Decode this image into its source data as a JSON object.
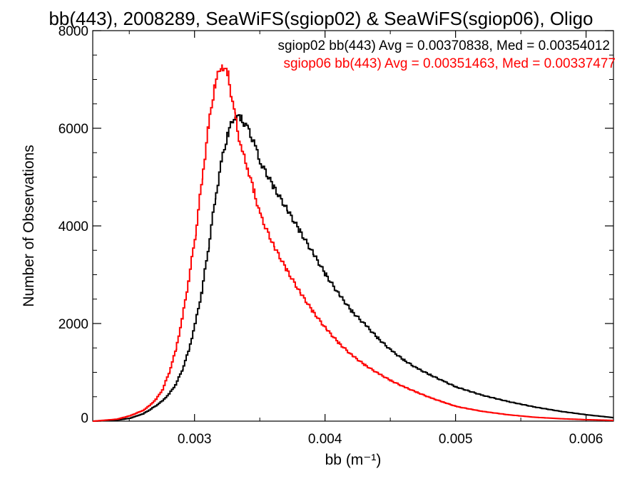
{
  "chart_data": {
    "type": "line",
    "title": "bb(443), 2008289, SeaWiFS(sgiop02) & SeaWiFS(sgiop06), Oligo",
    "xlabel": "bb (m⁻¹)",
    "ylabel": "Number of Observations",
    "xlim": [
      0.00222,
      0.00621
    ],
    "ylim": [
      0,
      8000
    ],
    "x_ticks": [
      0.003,
      0.004,
      0.005,
      0.006
    ],
    "x_tick_labels": [
      "0.003",
      "0.004",
      "0.005",
      "0.006"
    ],
    "y_ticks": [
      0,
      2000,
      4000,
      6000,
      8000
    ],
    "y_tick_labels": [
      "0",
      "2000",
      "4000",
      "6000",
      "8000"
    ],
    "grid": false,
    "annotations": [
      "sgiop02 bb(443) Avg = 0.00370838, Med = 0.00354012",
      "sgiop06 bb(443) Avg = 0.00351463, Med = 0.00337477"
    ],
    "series": [
      {
        "color": "#000000",
        "x": [
          0.00222,
          0.0024,
          0.0025,
          0.0026,
          0.00265,
          0.0027,
          0.00275,
          0.0028,
          0.00285,
          0.0029,
          0.00295,
          0.003,
          0.00305,
          0.0031,
          0.00315,
          0.0032,
          0.00325,
          0.0033,
          0.00335,
          0.0034,
          0.00345,
          0.0035,
          0.0036,
          0.0037,
          0.0038,
          0.0039,
          0.004,
          0.0041,
          0.0042,
          0.0043,
          0.0044,
          0.0045,
          0.0046,
          0.0047,
          0.0048,
          0.0049,
          0.005,
          0.0052,
          0.0054,
          0.0056,
          0.0058,
          0.006,
          0.00621
        ],
        "y": [
          0,
          20,
          60,
          150,
          230,
          320,
          420,
          560,
          750,
          1050,
          1450,
          2000,
          2650,
          3550,
          4500,
          5300,
          5900,
          6250,
          6200,
          6000,
          5700,
          5300,
          4800,
          4350,
          3900,
          3450,
          3000,
          2600,
          2250,
          1980,
          1700,
          1450,
          1250,
          1080,
          950,
          820,
          700,
          530,
          400,
          290,
          200,
          130,
          70
        ]
      },
      {
        "color": "#ff0000",
        "x": [
          0.00222,
          0.0024,
          0.0025,
          0.0026,
          0.00265,
          0.0027,
          0.00275,
          0.0028,
          0.00285,
          0.0029,
          0.00295,
          0.003,
          0.00305,
          0.0031,
          0.00315,
          0.0032,
          0.00325,
          0.0033,
          0.00335,
          0.0034,
          0.00345,
          0.0035,
          0.0036,
          0.0037,
          0.0038,
          0.0039,
          0.004,
          0.0041,
          0.0042,
          0.0043,
          0.0044,
          0.0045,
          0.0046,
          0.0047,
          0.0048,
          0.0049,
          0.005,
          0.0052,
          0.0054,
          0.0056,
          0.0058,
          0.006,
          0.00621
        ],
        "y": [
          0,
          40,
          110,
          220,
          320,
          450,
          650,
          1000,
          1450,
          2100,
          2900,
          3800,
          4900,
          6000,
          6900,
          7300,
          7100,
          6300,
          5600,
          5200,
          4700,
          4200,
          3600,
          3100,
          2650,
          2250,
          1900,
          1600,
          1350,
          1150,
          980,
          830,
          700,
          590,
          480,
          390,
          300,
          200,
          130,
          80,
          50,
          30,
          15
        ]
      }
    ]
  }
}
